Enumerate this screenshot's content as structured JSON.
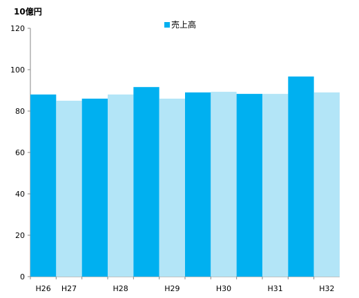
{
  "chart_data": {
    "type": "bar",
    "unit_label": "10億円",
    "categories": [
      "H26",
      "H27",
      "",
      "H28",
      "",
      "H29",
      "",
      "H30",
      "",
      "H31",
      "",
      "H32"
    ],
    "series": [
      {
        "name": "売上高",
        "values": [
          88.0,
          85.0,
          86.0,
          88.0,
          91.6,
          86.0,
          89.0,
          89.3,
          88.3,
          88.3,
          96.7,
          89.0
        ]
      }
    ],
    "bar_colors": [
      "#00b0f0",
      "#b3e5f7",
      "#00b0f0",
      "#b3e5f7",
      "#00b0f0",
      "#b3e5f7",
      "#00b0f0",
      "#b3e5f7",
      "#00b0f0",
      "#b3e5f7",
      "#00b0f0",
      "#b3e5f7"
    ],
    "legend_color": "#00b0f0",
    "legend_position": "top-center",
    "ylim": [
      0,
      120
    ],
    "yticks": [
      0,
      20,
      40,
      60,
      80,
      100,
      120
    ],
    "grid": false
  }
}
